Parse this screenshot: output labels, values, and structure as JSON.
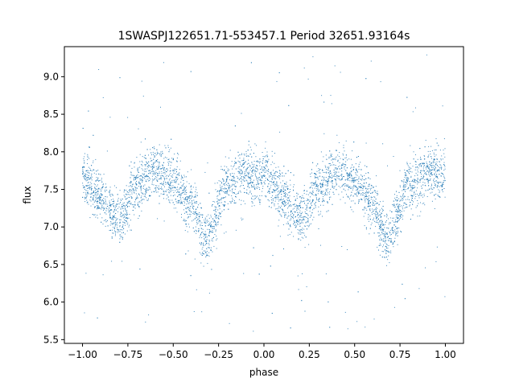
{
  "chart_data": {
    "type": "scatter",
    "title": "1SWASPJ122651.71-553457.1 Period 32651.93164s",
    "xlabel": "phase",
    "ylabel": "flux",
    "xlim": [
      -1.1,
      1.1
    ],
    "ylim": [
      5.45,
      9.4
    ],
    "xticks": [
      -1.0,
      -0.75,
      -0.5,
      -0.25,
      0.0,
      0.25,
      0.5,
      0.75,
      1.0
    ],
    "xtick_labels": [
      "−1.00",
      "−0.75",
      "−0.50",
      "−0.25",
      "0.00",
      "0.25",
      "0.50",
      "0.75",
      "1.00"
    ],
    "yticks": [
      5.5,
      6.0,
      6.5,
      7.0,
      7.5,
      8.0,
      8.5,
      9.0
    ],
    "ytick_labels": [
      "5.5",
      "6.0",
      "6.5",
      "7.0",
      "7.5",
      "8.0",
      "8.5",
      "9.0"
    ],
    "grid": false,
    "marker_color": "#1f77b4",
    "series": [
      {
        "phase_range": [
          -1.0,
          1.0
        ],
        "light_curve_profile": [
          {
            "x": -1.0,
            "y": 7.65
          },
          {
            "x": -0.9,
            "y": 7.4
          },
          {
            "x": -0.8,
            "y": 7.1
          },
          {
            "x": -0.7,
            "y": 7.55
          },
          {
            "x": -0.6,
            "y": 7.75
          },
          {
            "x": -0.5,
            "y": 7.6
          },
          {
            "x": -0.4,
            "y": 7.3
          },
          {
            "x": -0.32,
            "y": 6.85
          },
          {
            "x": -0.2,
            "y": 7.55
          },
          {
            "x": -0.1,
            "y": 7.72
          },
          {
            "x": 0.0,
            "y": 7.65
          },
          {
            "x": 0.1,
            "y": 7.4
          },
          {
            "x": 0.2,
            "y": 7.1
          },
          {
            "x": 0.3,
            "y": 7.55
          },
          {
            "x": 0.4,
            "y": 7.75
          },
          {
            "x": 0.5,
            "y": 7.6
          },
          {
            "x": 0.6,
            "y": 7.3
          },
          {
            "x": 0.68,
            "y": 6.85
          },
          {
            "x": 0.8,
            "y": 7.55
          },
          {
            "x": 0.9,
            "y": 7.72
          },
          {
            "x": 1.0,
            "y": 7.7
          }
        ],
        "scatter_sigma": 0.17,
        "outlier_range": [
          5.6,
          9.3
        ]
      }
    ]
  }
}
